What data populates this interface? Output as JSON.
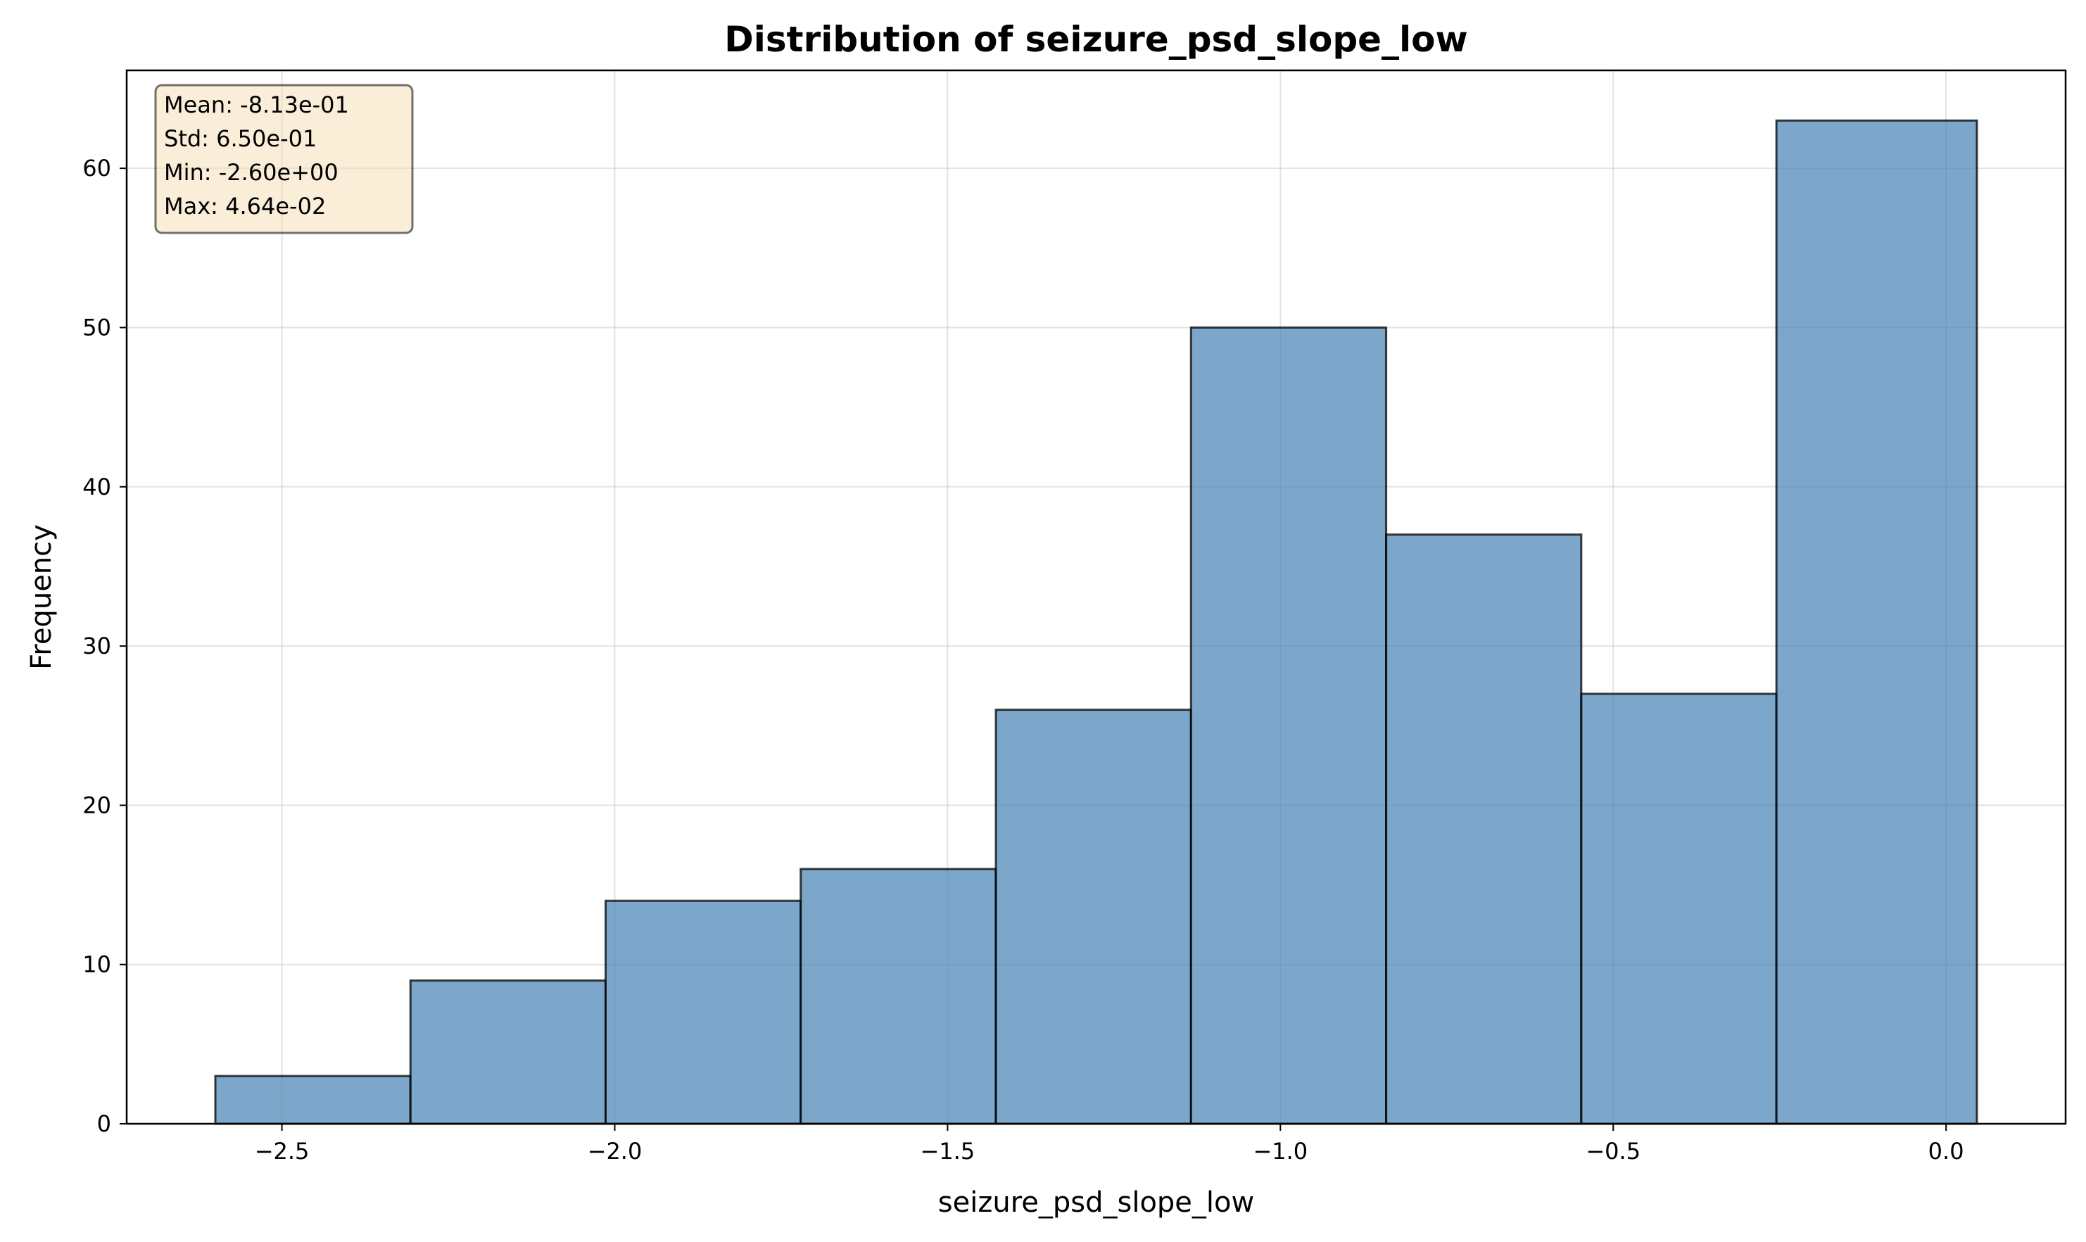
{
  "chart_data": {
    "type": "bar",
    "title": "Distribution of seizure_psd_slope_low",
    "xlabel": "seizure_psd_slope_low",
    "ylabel": "Frequency",
    "bin_edges": [
      -2.6,
      -2.3069,
      -2.0137,
      -1.7206,
      -1.4274,
      -1.1343,
      -0.8411,
      -0.548,
      -0.2548,
      0.0464
    ],
    "values": [
      3,
      9,
      14,
      16,
      26,
      50,
      37,
      27,
      63
    ],
    "xlim": [
      -2.7332,
      0.1796
    ],
    "ylim": [
      0,
      66.15
    ],
    "xticks": [
      -2.5,
      -2.0,
      -1.5,
      -1.0,
      -0.5,
      0.0
    ],
    "xtick_labels": [
      "−2.5",
      "−2.0",
      "−1.5",
      "−1.0",
      "−0.5",
      "0.0"
    ],
    "yticks": [
      0,
      10,
      20,
      30,
      40,
      50,
      60
    ],
    "ytick_labels": [
      "0",
      "10",
      "20",
      "30",
      "40",
      "50",
      "60"
    ],
    "grid": true,
    "stats": [
      "Mean: -8.13e-01",
      "Std: 6.50e-01",
      "Min: -2.60e+00",
      "Max: 4.64e-02"
    ],
    "colors": {
      "bar_fill": "#4682b4",
      "bar_edge": "#000000",
      "stats_fill": "#f5deb3",
      "stats_edge": "#000000",
      "grid": "#b0b0b0"
    }
  }
}
